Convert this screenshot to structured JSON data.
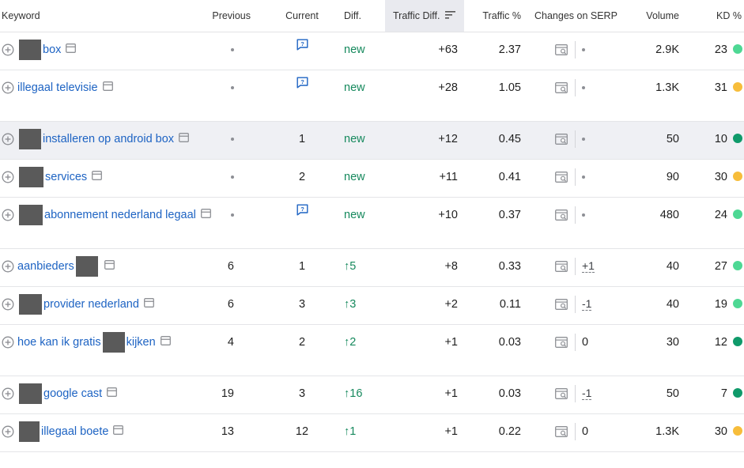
{
  "columns": {
    "keyword": "Keyword",
    "previous": "Previous",
    "current": "Current",
    "diff": "Diff.",
    "traffic_diff": "Traffic Diff.",
    "traffic_pct": "Traffic %",
    "changes_serp": "Changes on SERP",
    "volume": "Volume",
    "kd": "KD %"
  },
  "colors": {
    "link": "#1d63c3",
    "positive": "#16895d",
    "kd_light_green": "#4ed894",
    "kd_dark_green": "#0f9a6a",
    "kd_yellow": "#f7bd3b",
    "header_sorted_bg": "#e9eaef"
  },
  "rows": [
    {
      "parts": [
        "",
        "box"
      ],
      "previous": "•",
      "current_icon": "serp-feature-icon",
      "current": "",
      "diff": "new",
      "traffic_diff": "+63",
      "traffic_pct": "2.37",
      "serp_change": "•",
      "volume": "2.9K",
      "kd": "23",
      "kd_level": "light-green"
    },
    {
      "parts": [
        "illegaal televisie"
      ],
      "previous": "•",
      "current_icon": "serp-feature-icon",
      "current": "",
      "diff": "new",
      "traffic_diff": "+28",
      "traffic_pct": "1.05",
      "serp_change": "•",
      "volume": "1.3K",
      "kd": "31",
      "kd_level": "yellow"
    },
    {
      "parts": [
        "",
        "installeren op android box"
      ],
      "previous": "•",
      "current": "1",
      "diff": "new",
      "traffic_diff": "+12",
      "traffic_pct": "0.45",
      "serp_change": "•",
      "volume": "50",
      "kd": "10",
      "kd_level": "dark-green"
    },
    {
      "parts": [
        "",
        "services"
      ],
      "previous": "•",
      "current": "2",
      "diff": "new",
      "traffic_diff": "+11",
      "traffic_pct": "0.41",
      "serp_change": "•",
      "volume": "90",
      "kd": "30",
      "kd_level": "yellow"
    },
    {
      "parts": [
        "",
        "abonnement nederland legaal"
      ],
      "previous": "•",
      "current_icon": "serp-feature-icon",
      "current": "",
      "diff": "new",
      "traffic_diff": "+10",
      "traffic_pct": "0.37",
      "serp_change": "•",
      "volume": "480",
      "kd": "24",
      "kd_level": "light-green"
    },
    {
      "parts": [
        "aanbieders",
        ""
      ],
      "previous": "6",
      "current": "1",
      "diff": "5",
      "diff_arrow": "↑",
      "traffic_diff": "+8",
      "traffic_pct": "0.33",
      "serp_change": "+1",
      "volume": "40",
      "kd": "27",
      "kd_level": "light-green"
    },
    {
      "parts": [
        "",
        "provider nederland"
      ],
      "previous": "6",
      "current": "3",
      "diff": "3",
      "diff_arrow": "↑",
      "traffic_diff": "+2",
      "traffic_pct": "0.11",
      "serp_change": "-1",
      "volume": "40",
      "kd": "19",
      "kd_level": "light-green"
    },
    {
      "parts": [
        "hoe kan ik gratis",
        "",
        "kijken"
      ],
      "previous": "4",
      "current": "2",
      "diff": "2",
      "diff_arrow": "↑",
      "traffic_diff": "+1",
      "traffic_pct": "0.03",
      "serp_change": "0",
      "volume": "30",
      "kd": "12",
      "kd_level": "dark-green"
    },
    {
      "parts": [
        "",
        "google cast"
      ],
      "previous": "19",
      "current": "3",
      "diff": "16",
      "diff_arrow": "↑",
      "traffic_diff": "+1",
      "traffic_pct": "0.03",
      "serp_change": "-1",
      "volume": "50",
      "kd": "7",
      "kd_level": "dark-green"
    },
    {
      "parts": [
        "",
        "illegaal boete"
      ],
      "previous": "13",
      "current": "12",
      "diff": "1",
      "diff_arrow": "↑",
      "traffic_diff": "+1",
      "traffic_pct": "0.22",
      "serp_change": "0",
      "volume": "1.3K",
      "kd": "30",
      "kd_level": "yellow"
    }
  ]
}
